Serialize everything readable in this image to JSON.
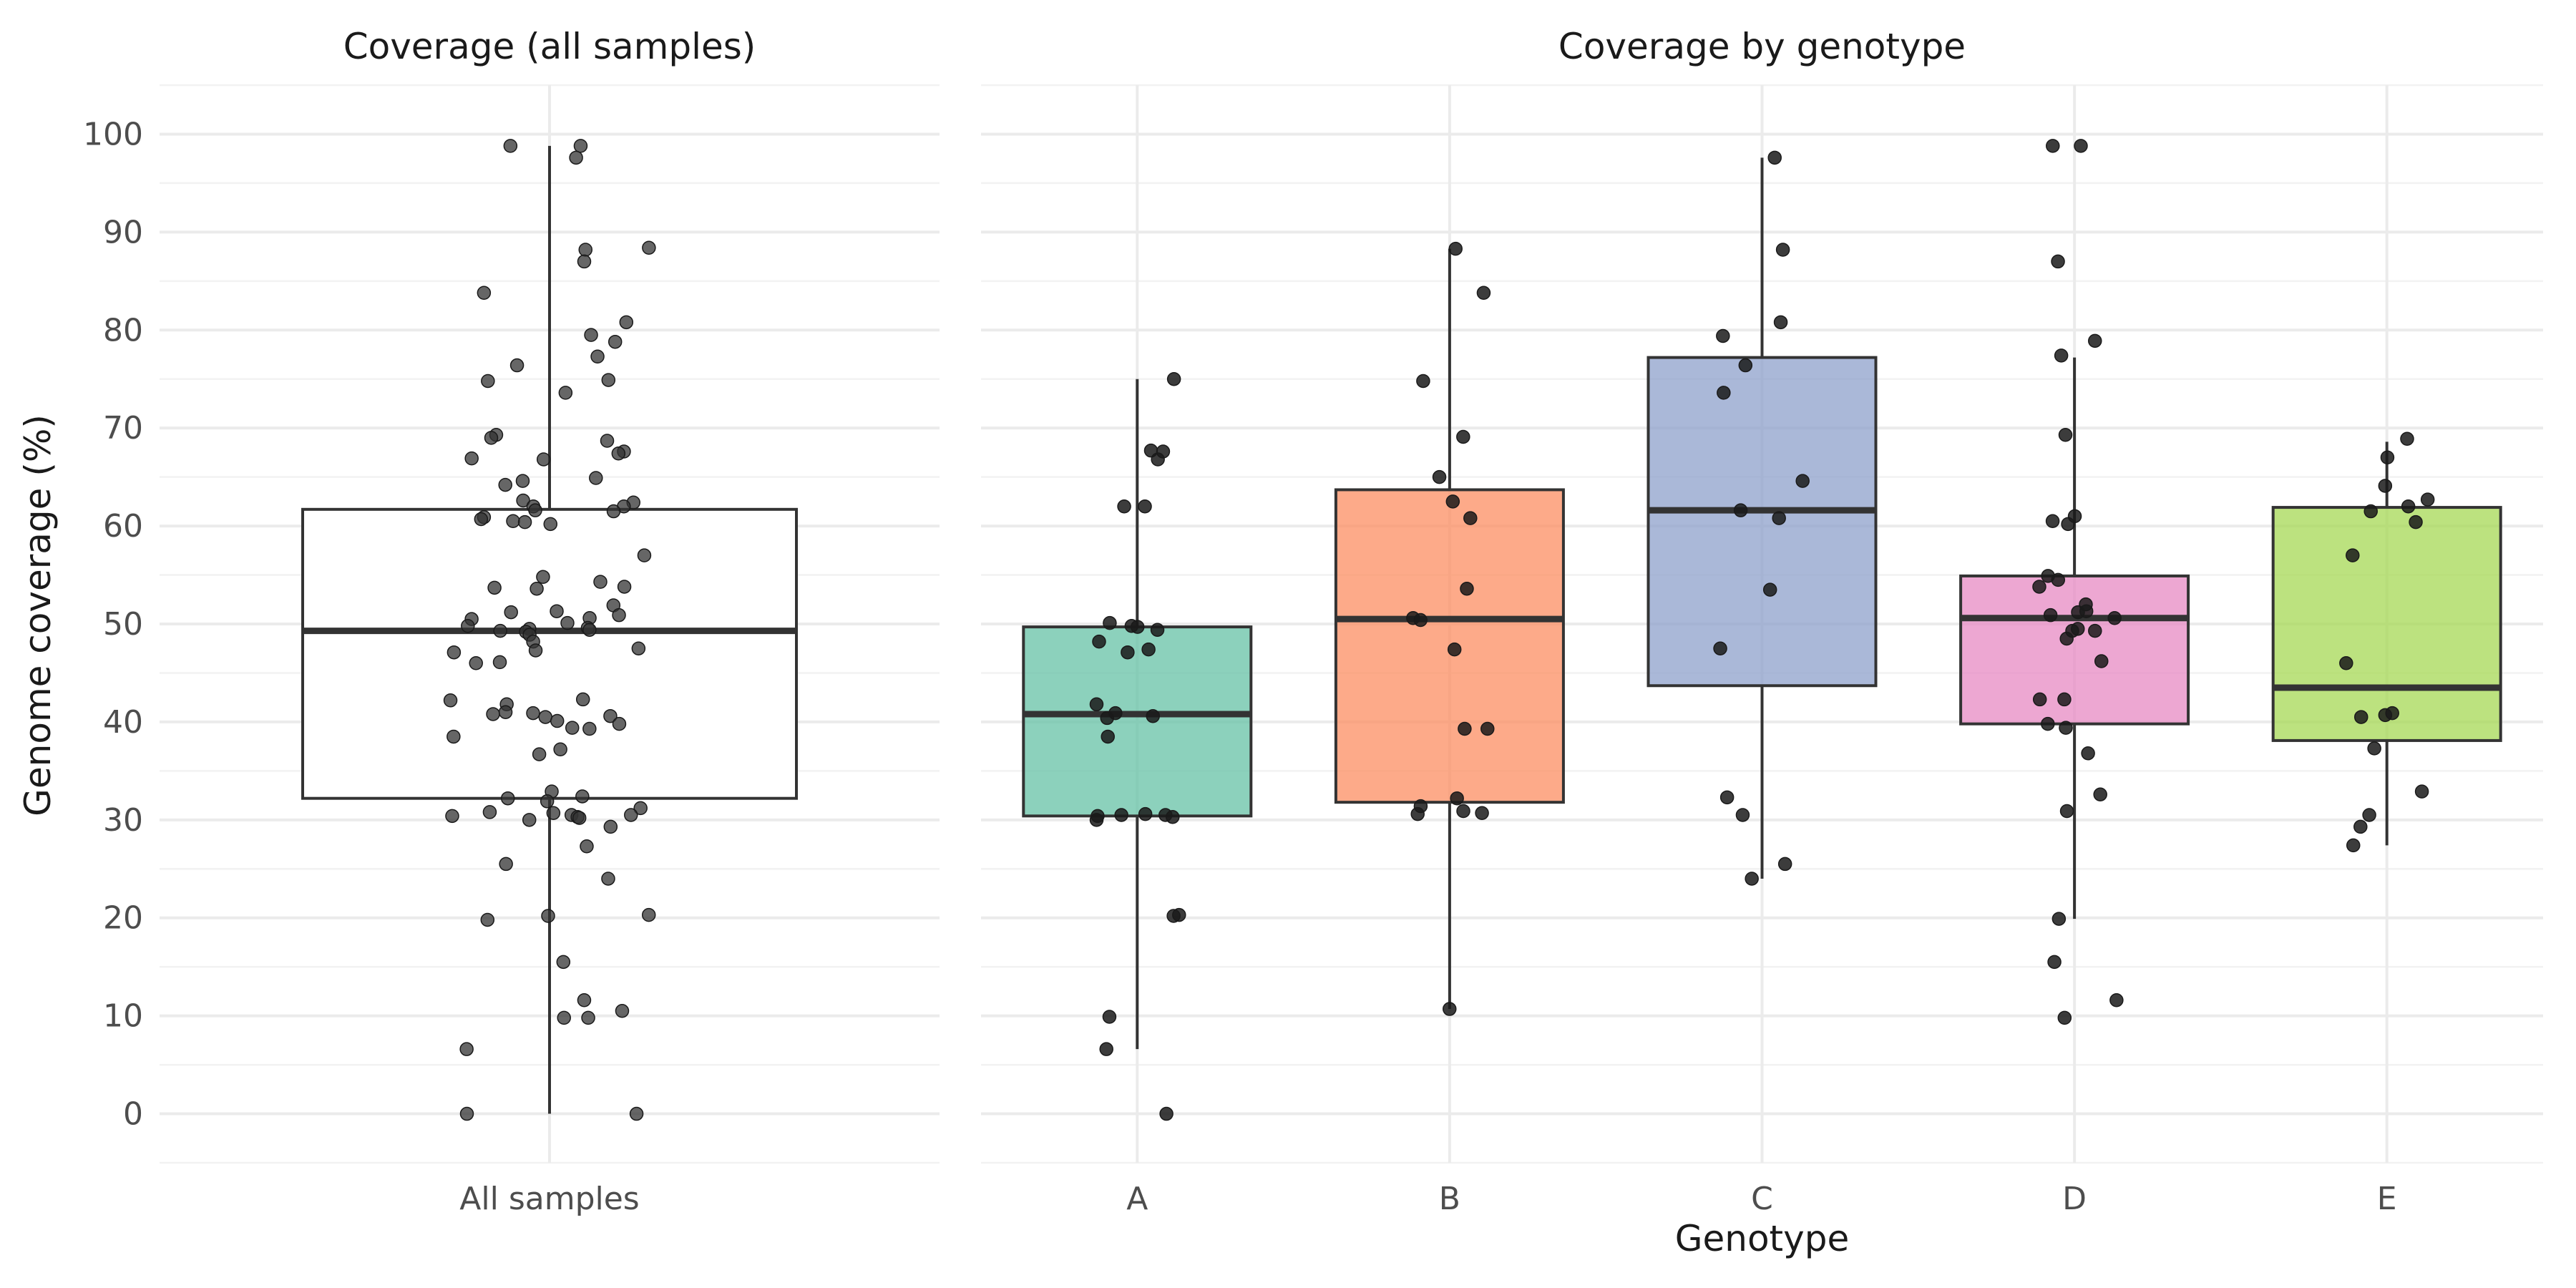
{
  "chart_data": [
    {
      "type": "boxplot",
      "title": "Coverage (all samples)",
      "xlabel": "",
      "ylabel": "Genome coverage (%)",
      "ylim": [
        -5,
        105
      ],
      "yticks": [
        0,
        10,
        20,
        30,
        40,
        50,
        60,
        70,
        80,
        90,
        100
      ],
      "grid": true,
      "categories": [
        "All samples"
      ],
      "boxes": [
        {
          "category": "All samples",
          "fill": "#ffffff",
          "whisker_low": 0,
          "q1": 32.2,
          "median": 49.3,
          "q3": 61.7,
          "whisker_high": 98.8
        }
      ],
      "points": [
        {
          "category": "All samples",
          "values": [
            98.8,
            98.8,
            97.6,
            88.4,
            88.2,
            87.0,
            83.8,
            80.8,
            79.5,
            78.8,
            77.3,
            76.4,
            74.9,
            74.8,
            73.6,
            69.3,
            69.0,
            68.7,
            67.6,
            67.4,
            66.9,
            66.8,
            64.9,
            64.6,
            64.2,
            62.6,
            62.4,
            62.0,
            62.0,
            61.6,
            61.5,
            60.9,
            60.7,
            60.5,
            60.4,
            60.2,
            57.0,
            54.8,
            54.3,
            53.7,
            53.6,
            53.8,
            51.9,
            51.2,
            51.3,
            50.9,
            50.6,
            50.5,
            50.1,
            49.8,
            49.6,
            49.5,
            49.4,
            49.3,
            49.2,
            48.9,
            48.2,
            47.5,
            47.3,
            47.1,
            46.1,
            46.0,
            42.3,
            42.2,
            41.8,
            41.0,
            40.9,
            40.8,
            40.6,
            40.5,
            40.1,
            39.8,
            39.4,
            39.3,
            38.5,
            37.2,
            36.7,
            32.9,
            32.4,
            32.2,
            31.9,
            31.2,
            30.8,
            30.7,
            30.5,
            30.5,
            30.4,
            30.3,
            30.2,
            30.0,
            29.3,
            27.3,
            25.5,
            24.0,
            20.3,
            20.2,
            19.8,
            15.5,
            11.6,
            10.5,
            9.8,
            9.8,
            6.6,
            0,
            0
          ]
        }
      ]
    },
    {
      "type": "boxplot",
      "title": "Coverage by genotype",
      "xlabel": "Genotype",
      "ylabel": "Genome coverage (%)",
      "ylim": [
        -5,
        105
      ],
      "grid": true,
      "categories": [
        "A",
        "B",
        "C",
        "D",
        "E"
      ],
      "boxes": [
        {
          "category": "A",
          "fill": "#66c2a5",
          "whisker_low": 6.6,
          "q1": 30.4,
          "median": 40.8,
          "q3": 49.7,
          "whisker_high": 75.0
        },
        {
          "category": "B",
          "fill": "#fc8d62",
          "whisker_low": 10.7,
          "q1": 31.8,
          "median": 50.5,
          "q3": 63.7,
          "whisker_high": 88.3
        },
        {
          "category": "C",
          "fill": "#8da0cb",
          "whisker_low": 24.0,
          "q1": 43.7,
          "median": 61.6,
          "q3": 77.2,
          "whisker_high": 97.6
        },
        {
          "category": "D",
          "fill": "#e78ac3",
          "whisker_low": 19.9,
          "q1": 39.8,
          "median": 50.6,
          "q3": 54.9,
          "whisker_high": 77.2
        },
        {
          "category": "E",
          "fill": "#a6d854",
          "whisker_low": 27.4,
          "q1": 38.1,
          "median": 43.5,
          "q3": 61.9,
          "whisker_high": 68.6
        }
      ],
      "points": [
        {
          "category": "A",
          "values": [
            75.0,
            67.6,
            67.7,
            66.8,
            62.0,
            62.0,
            49.7,
            49.4,
            50.1,
            49.8,
            48.2,
            47.4,
            47.1,
            41.8,
            40.9,
            40.6,
            40.4,
            38.5,
            30.6,
            30.5,
            30.3,
            30.0,
            30.5,
            30.4,
            20.3,
            20.2,
            9.9,
            6.6,
            0
          ]
        },
        {
          "category": "B",
          "values": [
            88.3,
            83.8,
            74.8,
            69.1,
            65.0,
            62.5,
            60.8,
            53.6,
            50.4,
            50.6,
            47.4,
            39.3,
            39.3,
            32.2,
            31.4,
            30.6,
            30.9,
            30.7,
            10.7
          ]
        },
        {
          "category": "C",
          "values": [
            97.6,
            88.2,
            80.8,
            79.4,
            76.4,
            73.6,
            64.6,
            61.6,
            60.8,
            53.5,
            47.5,
            32.3,
            30.5,
            25.5,
            24.0
          ]
        },
        {
          "category": "D",
          "values": [
            98.8,
            98.8,
            87.0,
            78.9,
            77.4,
            69.3,
            61.0,
            60.5,
            60.2,
            54.9,
            54.5,
            53.8,
            52.0,
            51.3,
            51.2,
            50.9,
            50.6,
            49.5,
            49.3,
            49.3,
            48.5,
            46.2,
            42.3,
            42.3,
            39.8,
            39.4,
            36.8,
            32.6,
            30.9,
            19.9,
            15.5,
            11.6,
            9.8
          ]
        },
        {
          "category": "E",
          "values": [
            68.9,
            67.0,
            64.1,
            62.7,
            62.0,
            61.5,
            60.4,
            57.0,
            46.0,
            40.9,
            40.7,
            40.5,
            37.3,
            32.9,
            30.5,
            29.3,
            27.4
          ]
        }
      ]
    }
  ]
}
